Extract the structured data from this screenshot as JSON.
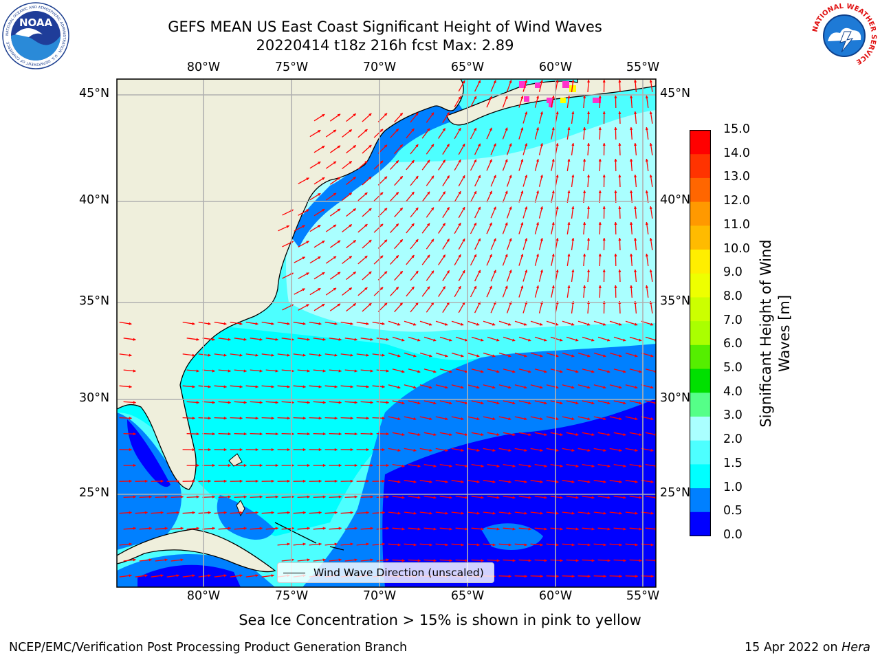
{
  "title": {
    "line1": "GEFS MEAN US East Coast Significant Height of Wind Waves",
    "line2": "20220414 t18z 216h fcst   Max: 2.89"
  },
  "logos": {
    "left": {
      "text": "NOAA",
      "ring_text": "NATIONAL OCEANIC AND ATMOSPHERIC ADMINISTRATION · U.S. DEPARTMENT OF COMMERCE"
    },
    "right": {
      "ring_text": "NATIONAL WEATHER SERVICE"
    }
  },
  "map": {
    "lon_labels": [
      "80°W",
      "75°W",
      "70°W",
      "65°W",
      "60°W",
      "55°W"
    ],
    "lat_labels": [
      "45°N",
      "40°N",
      "35°N",
      "30°N",
      "25°N"
    ],
    "extent": {
      "lon": [
        -85,
        -54.3
      ],
      "lat": [
        20.3,
        46
      ]
    },
    "colors": {
      "land": "#efefdc",
      "coast": "#000000",
      "grid": "#b0b0b0",
      "arrow": "#ff0000",
      "ice_pink": "#ff33cc",
      "ice_yellow": "#ffff00"
    }
  },
  "legend": {
    "label": "Wind Wave Direction (unscaled)"
  },
  "colorbar": {
    "title": "Significant Height of Wind Waves [m]",
    "ticks": [
      "15.0",
      "14.0",
      "13.0",
      "12.0",
      "11.0",
      "10.0",
      "9.0",
      "8.0",
      "7.0",
      "6.0",
      "5.0",
      "4.0",
      "3.0",
      "2.0",
      "1.5",
      "1.0",
      "0.5",
      "0.0"
    ],
    "bins": [
      {
        "from": 0.0,
        "to": 0.5,
        "color": "#0000ff"
      },
      {
        "from": 0.5,
        "to": 1.0,
        "color": "#0080ff"
      },
      {
        "from": 1.0,
        "to": 1.5,
        "color": "#00ffff"
      },
      {
        "from": 1.5,
        "to": 2.0,
        "color": "#4dffff"
      },
      {
        "from": 2.0,
        "to": 3.0,
        "color": "#aaffff"
      },
      {
        "from": 3.0,
        "to": 4.0,
        "color": "#55ff88"
      },
      {
        "from": 4.0,
        "to": 5.0,
        "color": "#00e000"
      },
      {
        "from": 5.0,
        "to": 6.0,
        "color": "#55ee00"
      },
      {
        "from": 6.0,
        "to": 7.0,
        "color": "#aaff00"
      },
      {
        "from": 7.0,
        "to": 8.0,
        "color": "#ccff00"
      },
      {
        "from": 8.0,
        "to": 9.0,
        "color": "#eeff00"
      },
      {
        "from": 9.0,
        "to": 10.0,
        "color": "#ffee00"
      },
      {
        "from": 10.0,
        "to": 11.0,
        "color": "#ffbb00"
      },
      {
        "from": 11.0,
        "to": 12.0,
        "color": "#ff9900"
      },
      {
        "from": 12.0,
        "to": 13.0,
        "color": "#ff6600"
      },
      {
        "from": 13.0,
        "to": 14.0,
        "color": "#ff3300"
      },
      {
        "from": 14.0,
        "to": 15.0,
        "color": "#ff0000"
      }
    ]
  },
  "caption": "Sea Ice Concentration > 15% is shown in pink to yellow",
  "footer": {
    "left": "NCEP/EMC/Verification Post Processing Product Generation Branch",
    "right_date": "15 Apr 2022 on ",
    "right_host": "Hera"
  }
}
